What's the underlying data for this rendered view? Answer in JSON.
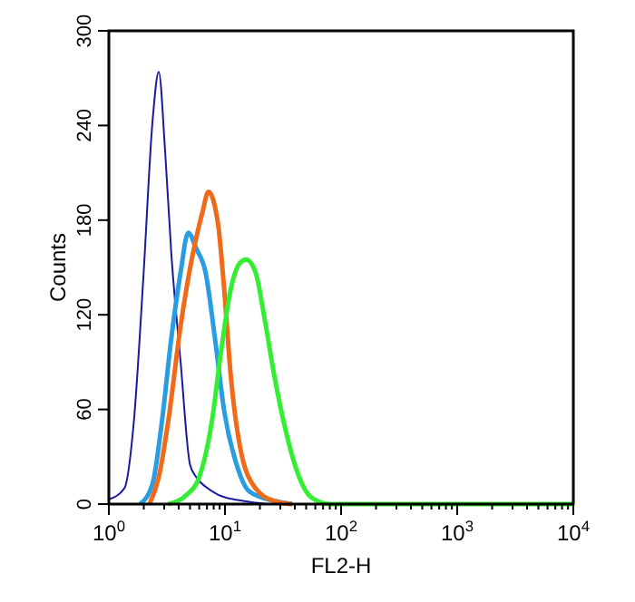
{
  "chart_data": {
    "type": "line",
    "xlabel": "FL2-H",
    "ylabel": "Counts",
    "log": "x",
    "xlim": [
      1,
      10000
    ],
    "ylim": [
      0,
      300
    ],
    "xticks": [
      {
        "value": 1,
        "label": "10$^{0}$"
      },
      {
        "value": 2,
        "label": null
      },
      {
        "value": 3,
        "label": null
      },
      {
        "value": 4,
        "label": null
      },
      {
        "value": 5,
        "label": null
      },
      {
        "value": 6,
        "label": null
      },
      {
        "value": 7,
        "label": null
      },
      {
        "value": 8,
        "label": null
      },
      {
        "value": 9,
        "label": null
      },
      {
        "value": 10,
        "label": "10$^{1}$"
      },
      {
        "value": 20,
        "label": null
      },
      {
        "value": 30,
        "label": null
      },
      {
        "value": 40,
        "label": null
      },
      {
        "value": 50,
        "label": null
      },
      {
        "value": 60,
        "label": null
      },
      {
        "value": 70,
        "label": null
      },
      {
        "value": 80,
        "label": null
      },
      {
        "value": 90,
        "label": null
      },
      {
        "value": 100,
        "label": "10$^{2}$"
      },
      {
        "value": 200,
        "label": null
      },
      {
        "value": 300,
        "label": null
      },
      {
        "value": 400,
        "label": null
      },
      {
        "value": 500,
        "label": null
      },
      {
        "value": 600,
        "label": null
      },
      {
        "value": 700,
        "label": null
      },
      {
        "value": 800,
        "label": null
      },
      {
        "value": 900,
        "label": null
      },
      {
        "value": 1000,
        "label": "10$^{3}$"
      },
      {
        "value": 2000,
        "label": null
      },
      {
        "value": 3000,
        "label": null
      },
      {
        "value": 4000,
        "label": null
      },
      {
        "value": 5000,
        "label": null
      },
      {
        "value": 6000,
        "label": null
      },
      {
        "value": 7000,
        "label": null
      },
      {
        "value": 8000,
        "label": null
      },
      {
        "value": 9000,
        "label": null
      },
      {
        "value": 10000,
        "label": "10$^{4}$"
      }
    ],
    "yticks": [
      0,
      60,
      120,
      180,
      240,
      300
    ],
    "grid": false,
    "series": [
      {
        "color": "#1a1aa0",
        "x": [
          1,
          1.36,
          1.64,
          1.98,
          2.38,
          2.69,
          3.05,
          3.45,
          4.15,
          5.0,
          5.66,
          6.8,
          8.7,
          14.3,
          23.5
        ],
        "values": [
          3,
          10,
          52,
          143,
          243,
          274,
          224,
          159,
          90,
          25,
          17,
          11,
          6,
          2,
          0
        ]
      },
      {
        "color": "#2a9de0",
        "x": [
          1.86,
          2.38,
          2.86,
          3.45,
          4.15,
          4.82,
          5.66,
          6.8,
          8.2,
          9.85,
          12.6,
          16.2,
          26.5,
          38
        ],
        "values": [
          0,
          13,
          52,
          105,
          147,
          172,
          162,
          147,
          105,
          59,
          25,
          8,
          2,
          0
        ]
      },
      {
        "color": "#f06a1a",
        "x": [
          2.24,
          2.69,
          3.24,
          4.15,
          5.3,
          6.4,
          7.2,
          8.7,
          9.85,
          11.2,
          13.5,
          18.3,
          26.5,
          38
        ],
        "values": [
          0,
          17,
          52,
          113,
          159,
          185,
          198,
          178,
          136,
          82,
          36,
          10,
          2,
          0
        ]
      },
      {
        "color": "#33ee33",
        "x": [
          3.24,
          4.7,
          6.0,
          7.7,
          9.3,
          11.2,
          13.5,
          15.2,
          18.3,
          22,
          26.5,
          34,
          43.6,
          55.8,
          81,
          10000
        ],
        "values": [
          0,
          6,
          17,
          52,
          98,
          136,
          153,
          155,
          147,
          117,
          82,
          44,
          17,
          4,
          0,
          0
        ]
      }
    ]
  }
}
